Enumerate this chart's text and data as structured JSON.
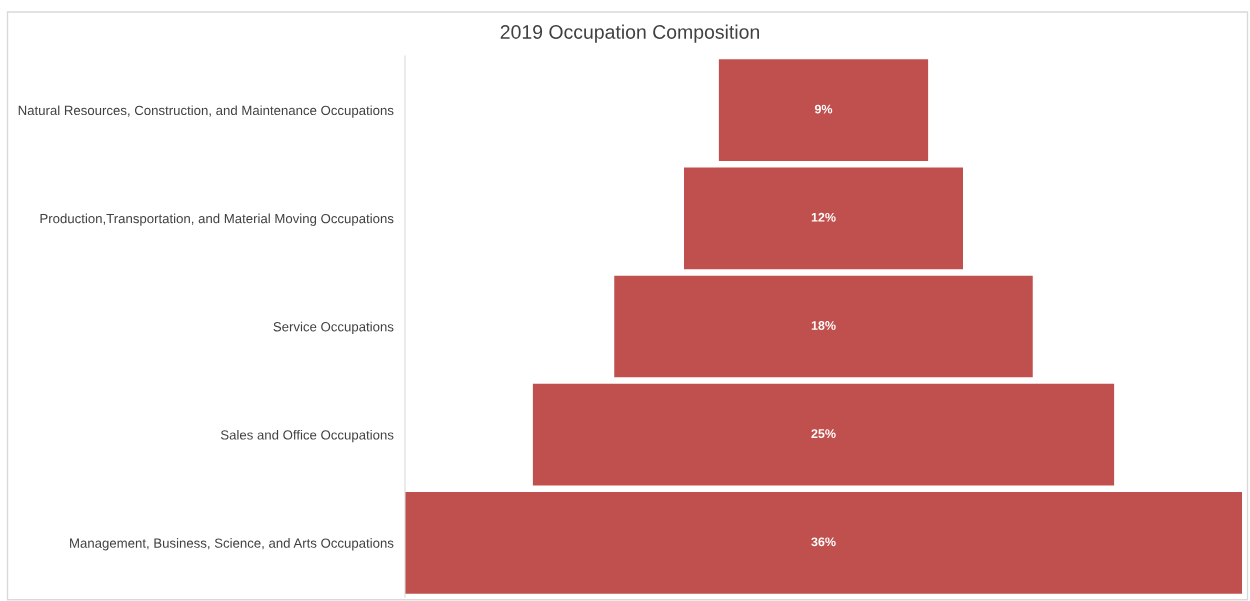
{
  "chart_data": {
    "type": "other",
    "title": "2019 Occupation Composition",
    "categories": [
      "Natural Resources, Construction, and Maintenance Occupations",
      "Production,Transportation, and Material Moving Occupations",
      "Service Occupations",
      "Sales and Office Occupations",
      "Management, Business, Science, and Arts Occupations"
    ],
    "values": [
      9,
      12,
      18,
      25,
      36
    ],
    "value_labels": [
      "9%",
      "12%",
      "18%",
      "25%",
      "36%"
    ],
    "color": "#c0504d"
  }
}
